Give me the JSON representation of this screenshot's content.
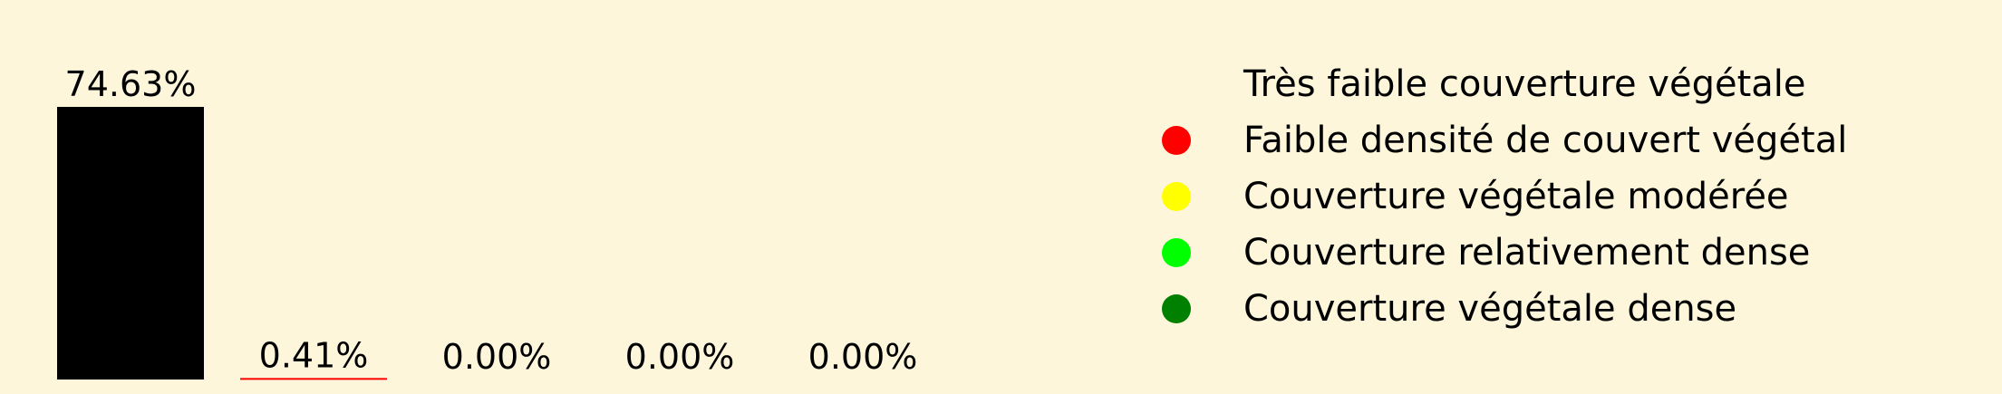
{
  "chart_data": {
    "type": "bar",
    "categories": [
      "Très faible couverture végétale",
      "Faible densité de couvert végétal",
      "Couverture végétale modérée",
      "Couverture relativement dense",
      "Couverture végétale dense"
    ],
    "values": [
      74.63,
      0.41,
      0.0,
      0.0,
      0.0
    ],
    "value_labels": [
      "74.63%",
      "0.41%",
      "0.00%",
      "0.00%",
      "0.00%"
    ],
    "colors": [
      "#000000",
      "#ff0000",
      "#ffff00",
      "#00ff00",
      "#008000"
    ],
    "ylim": [
      0,
      74.63
    ],
    "grid": false,
    "legend_position": "right",
    "legend": [
      {
        "label": "Très faible couverture végétale",
        "color": "#000000"
      },
      {
        "label": "Faible densité de couvert végétal",
        "color": "#ff0000"
      },
      {
        "label": "Couverture végétale modérée",
        "color": "#ffff00"
      },
      {
        "label": "Couverture relativement dense",
        "color": "#00ff00"
      },
      {
        "label": "Couverture végétale dense",
        "color": "#008000"
      }
    ],
    "title": "",
    "xlabel": "",
    "ylabel": ""
  }
}
